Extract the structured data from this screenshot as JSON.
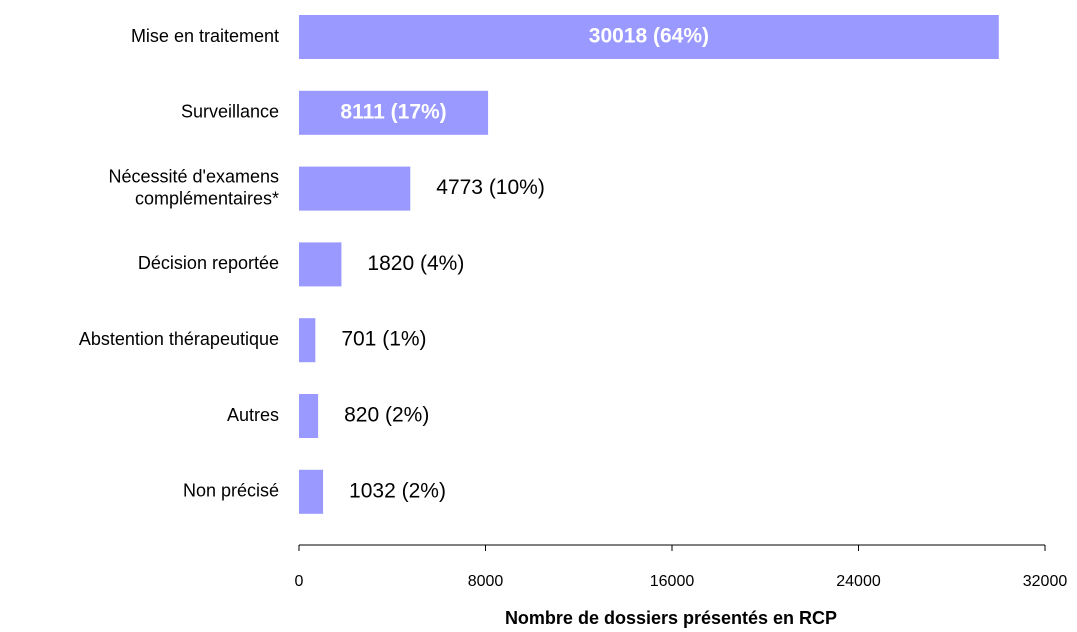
{
  "chart_data": {
    "type": "bar",
    "orientation": "horizontal",
    "categories": [
      "Mise en traitement",
      "Surveillance",
      "Nécessité d'examens\ncomplémentaires*",
      "Décision reportée",
      "Abstention thérapeutique",
      "Autres",
      "Non précisé"
    ],
    "values": [
      30018,
      8111,
      4773,
      1820,
      701,
      820,
      1032
    ],
    "value_labels": [
      "30018 (64%)",
      "8111 (17%)",
      "4773 (10%)",
      "1820 (4%)",
      "701 (1%)",
      "820 (2%)",
      "1032 (2%)"
    ],
    "color": "#9999ff",
    "xlabel": "Nombre de dossiers présentés en RCP",
    "xlim": [
      0,
      32000
    ],
    "xticks": [
      0,
      8000,
      16000,
      24000,
      32000
    ]
  }
}
